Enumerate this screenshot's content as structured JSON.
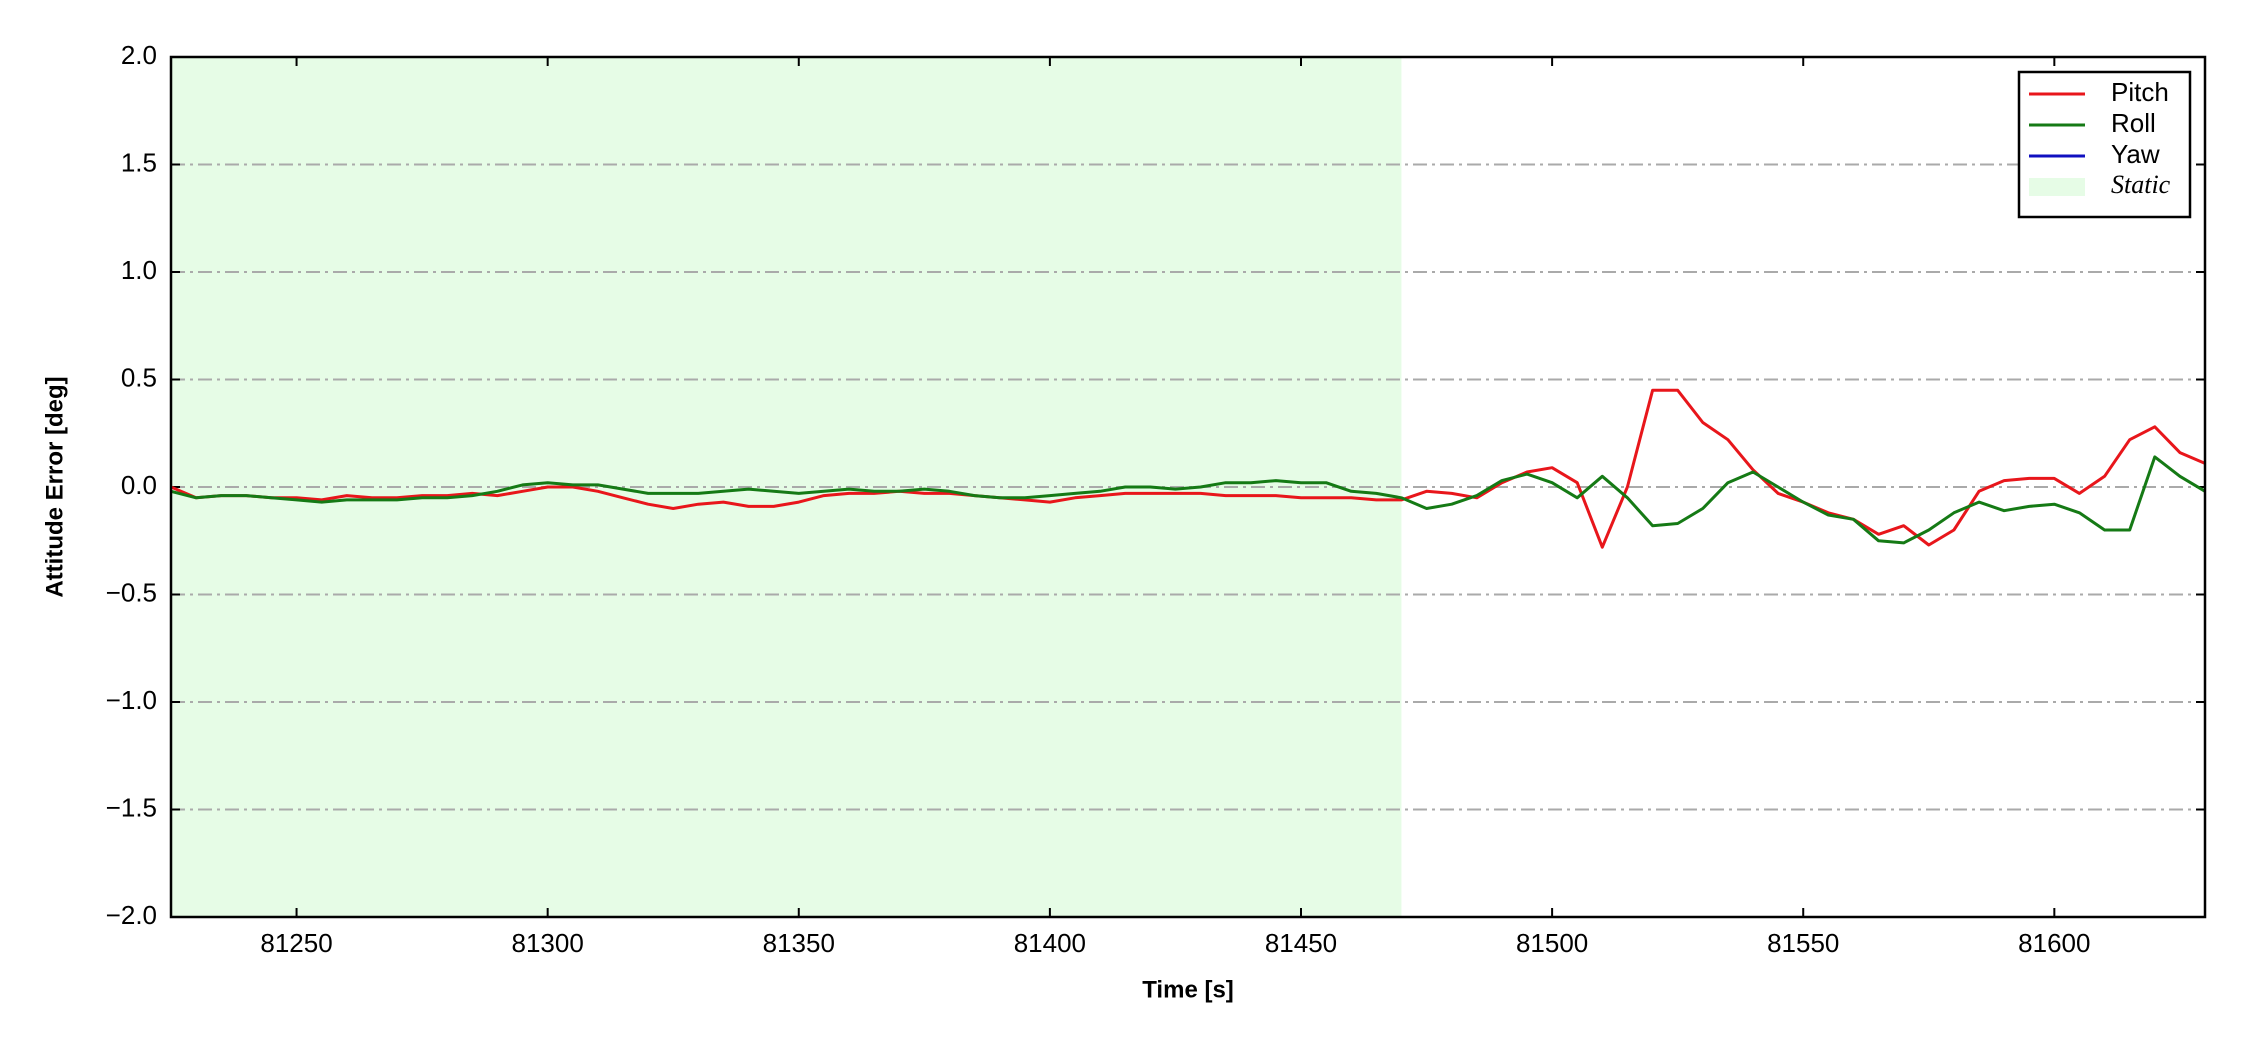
{
  "chart_data": {
    "type": "line",
    "xlabel": "Time [s]",
    "ylabel": "Attitude Error [deg]",
    "x": [
      81225,
      81230,
      81235,
      81240,
      81245,
      81250,
      81255,
      81260,
      81265,
      81270,
      81275,
      81280,
      81285,
      81290,
      81295,
      81300,
      81305,
      81310,
      81315,
      81320,
      81325,
      81330,
      81335,
      81340,
      81345,
      81350,
      81355,
      81360,
      81365,
      81370,
      81375,
      81380,
      81385,
      81390,
      81395,
      81400,
      81405,
      81410,
      81415,
      81420,
      81425,
      81430,
      81435,
      81440,
      81445,
      81450,
      81455,
      81460,
      81465,
      81470,
      81475,
      81480,
      81485,
      81490,
      81495,
      81500,
      81505,
      81510,
      81515,
      81520,
      81525,
      81530,
      81535,
      81540,
      81545,
      81550,
      81555,
      81560,
      81565,
      81570,
      81575,
      81580,
      81585,
      81590,
      81595,
      81600,
      81605,
      81610,
      81615,
      81620,
      81625,
      81630
    ],
    "series": [
      {
        "name": "Pitch",
        "color": "#e8161b",
        "values": [
          0.0,
          -0.05,
          -0.04,
          -0.04,
          -0.05,
          -0.05,
          -0.06,
          -0.04,
          -0.05,
          -0.05,
          -0.04,
          -0.04,
          -0.03,
          -0.04,
          -0.02,
          0.0,
          0.0,
          -0.02,
          -0.05,
          -0.08,
          -0.1,
          -0.08,
          -0.07,
          -0.09,
          -0.09,
          -0.07,
          -0.04,
          -0.03,
          -0.03,
          -0.02,
          -0.03,
          -0.03,
          -0.04,
          -0.05,
          -0.06,
          -0.07,
          -0.05,
          -0.04,
          -0.03,
          -0.03,
          -0.03,
          -0.03,
          -0.04,
          -0.04,
          -0.04,
          -0.05,
          -0.05,
          -0.05,
          -0.06,
          -0.06,
          -0.02,
          -0.03,
          -0.05,
          0.02,
          0.07,
          0.09,
          0.02,
          -0.28,
          0.0,
          0.45,
          0.45,
          0.3,
          0.22,
          0.08,
          -0.03,
          -0.07,
          -0.12,
          -0.15,
          -0.22,
          -0.18,
          -0.27,
          -0.2,
          -0.02,
          0.03,
          0.04,
          0.04,
          -0.03,
          0.05,
          0.22,
          0.28,
          0.16,
          0.11
        ]
      },
      {
        "name": "Roll",
        "color": "#157a15",
        "values": [
          -0.02,
          -0.05,
          -0.04,
          -0.04,
          -0.05,
          -0.06,
          -0.07,
          -0.06,
          -0.06,
          -0.06,
          -0.05,
          -0.05,
          -0.04,
          -0.02,
          0.01,
          0.02,
          0.01,
          0.01,
          -0.01,
          -0.03,
          -0.03,
          -0.03,
          -0.02,
          -0.01,
          -0.02,
          -0.03,
          -0.02,
          -0.01,
          -0.02,
          -0.02,
          -0.01,
          -0.02,
          -0.04,
          -0.05,
          -0.05,
          -0.04,
          -0.03,
          -0.02,
          0.0,
          0.0,
          -0.01,
          0.0,
          0.02,
          0.02,
          0.03,
          0.02,
          0.02,
          -0.02,
          -0.03,
          -0.05,
          -0.1,
          -0.08,
          -0.04,
          0.03,
          0.06,
          0.02,
          -0.05,
          0.05,
          -0.05,
          -0.18,
          -0.17,
          -0.1,
          0.02,
          0.07,
          0.0,
          -0.07,
          -0.13,
          -0.15,
          -0.25,
          -0.26,
          -0.2,
          -0.12,
          -0.07,
          -0.11,
          -0.09,
          -0.08,
          -0.12,
          -0.2,
          -0.2,
          0.14,
          0.05,
          -0.02
        ]
      },
      {
        "name": "Yaw",
        "color": "#1010c0",
        "values": [
          null,
          null,
          null,
          null,
          null,
          null,
          null,
          null,
          null,
          null,
          null,
          null,
          null,
          null,
          null,
          null,
          null,
          null,
          null,
          null,
          null,
          null,
          null,
          null,
          null,
          null,
          null,
          null,
          null,
          null,
          null,
          null,
          null,
          null,
          null,
          null,
          null,
          null,
          null,
          null,
          null,
          null,
          null,
          null,
          null,
          null,
          null,
          null,
          null,
          null,
          null,
          null,
          null,
          null,
          null,
          null,
          null,
          null,
          null,
          null,
          null,
          null,
          null,
          null,
          null,
          null,
          null,
          null,
          null,
          null,
          null,
          null,
          null,
          null,
          null,
          null,
          null,
          null,
          null,
          null,
          null,
          null
        ]
      }
    ],
    "span": {
      "name": "Static",
      "color": "#e6fce6",
      "x": [
        81225,
        81470
      ]
    },
    "xlim": [
      81225,
      81630
    ],
    "ylim": [
      -2.0,
      2.0
    ],
    "xticks": [
      81250,
      81300,
      81350,
      81400,
      81450,
      81500,
      81550,
      81600
    ],
    "yticks": [
      {
        "value": -2.0,
        "label": "−2.0"
      },
      {
        "value": -1.5,
        "label": "−1.5"
      },
      {
        "value": -1.0,
        "label": "−1.0"
      },
      {
        "value": -0.5,
        "label": "−0.5"
      },
      {
        "value": 0.0,
        "label": "0.0"
      },
      {
        "value": 0.5,
        "label": "0.5"
      },
      {
        "value": 1.0,
        "label": "1.0"
      },
      {
        "value": 1.5,
        "label": "1.5"
      },
      {
        "value": 2.0,
        "label": "2.0"
      }
    ],
    "grid": true,
    "legend": "upper right"
  }
}
